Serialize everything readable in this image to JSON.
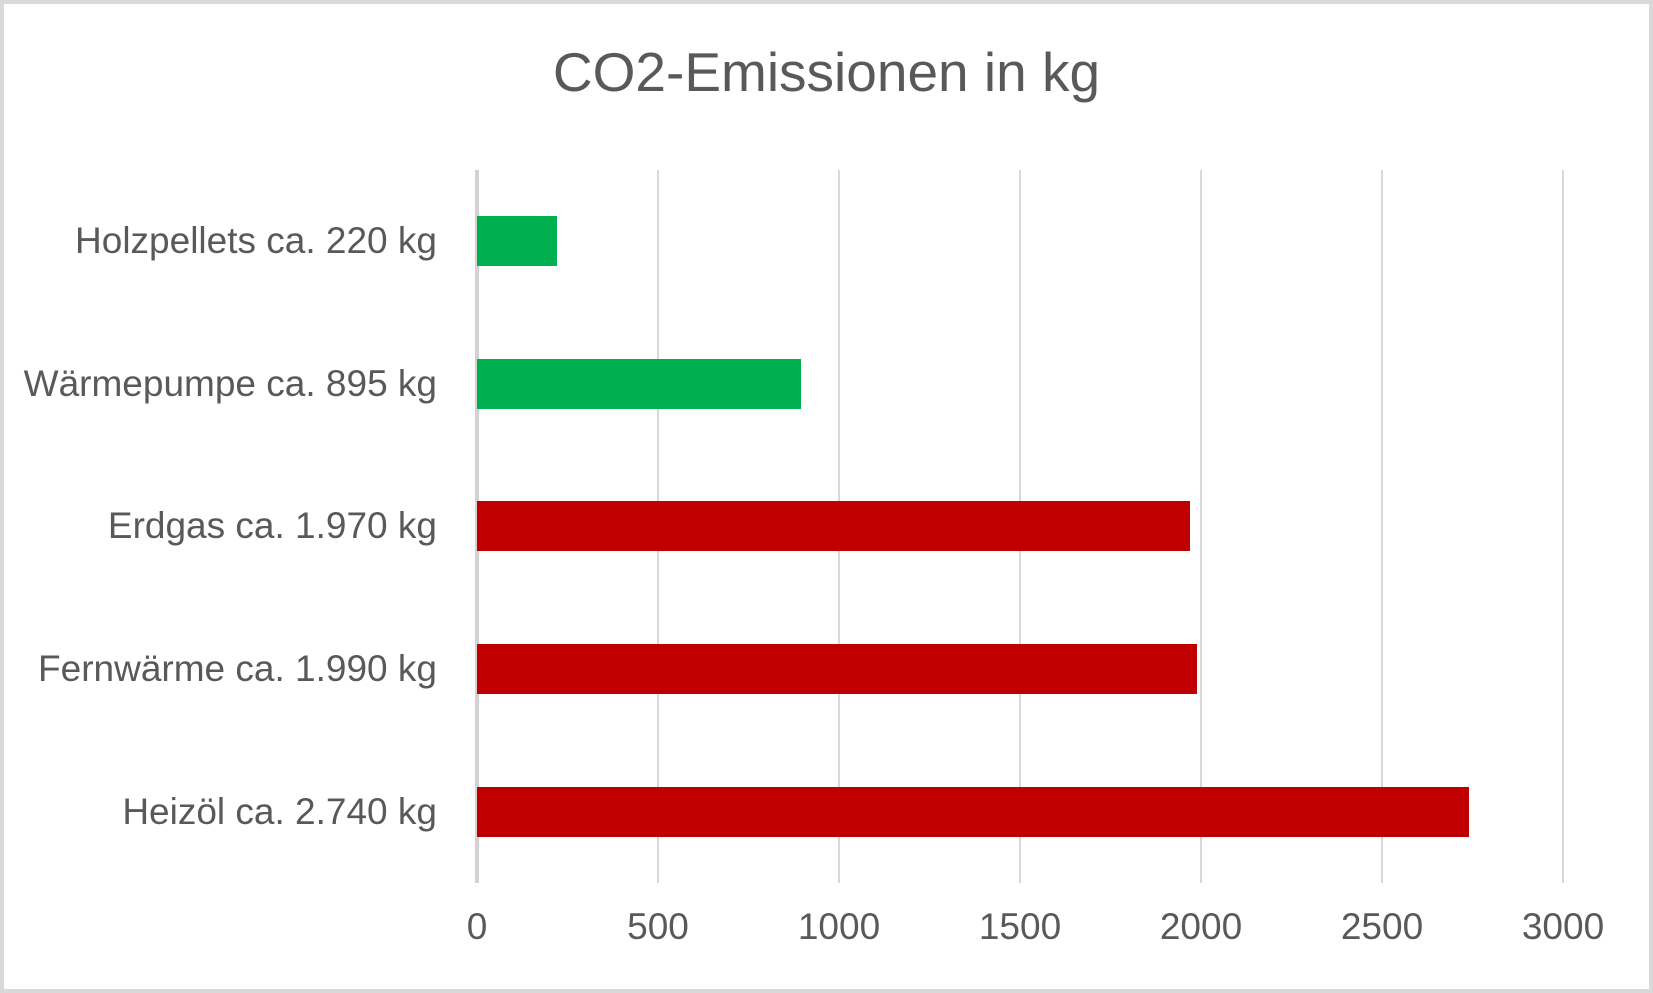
{
  "title": "CO2-Emissionen in kg",
  "chart_data": {
    "type": "bar",
    "orientation": "horizontal",
    "title": "CO2-Emissionen in kg",
    "category_order": "top-to-bottom",
    "categories": [
      "Holzpellets ca. 220 kg",
      "Wärmepumpe ca. 895 kg",
      "Erdgas ca. 1.970 kg",
      "Fernwärme ca. 1.990 kg",
      "Heizöl ca. 2.740 kg"
    ],
    "values": [
      220,
      895,
      1970,
      1990,
      2740
    ],
    "bar_colors": [
      "#00B050",
      "#00B050",
      "#C00000",
      "#C00000",
      "#C00000"
    ],
    "xlabel": "",
    "ylabel": "",
    "xlim": [
      0,
      3000
    ],
    "x_ticks": [
      "0",
      "500",
      "1000",
      "1500",
      "2000",
      "2500",
      "3000"
    ],
    "grid": "vertical-gridlines-only",
    "legend": false,
    "colors": {
      "green_bar": "#00B050",
      "red_bar": "#C00000",
      "text": "#595959",
      "gridline": "#D9D9D9",
      "axis_line": "#D2D2D2",
      "frame_border": "#D9D9D9",
      "background": "#FFFFFF"
    }
  }
}
